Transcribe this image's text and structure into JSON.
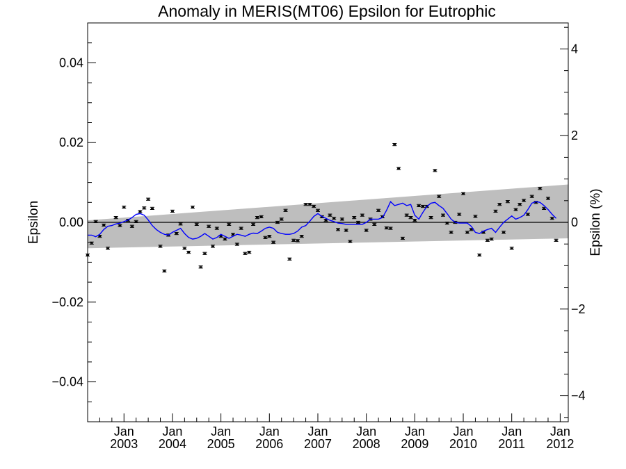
{
  "chart_data": {
    "type": "scatter",
    "title": "Anomaly in MERIS(MT06) Epsilon for Eutrophic",
    "ylabel": "Epsilon",
    "ylabel_right": "Epsilon (%)",
    "xlabel": "",
    "x_range": [
      "2002-04",
      "2012-03"
    ],
    "ylim": [
      -0.05,
      0.05
    ],
    "ylim_right": [
      -4.6,
      4.6
    ],
    "grid": false,
    "zero_line": true,
    "colors": {
      "points": "#000000",
      "running_mean": "#0000ff",
      "band": "#bebebe"
    },
    "y_ticks_left": [
      "0.04",
      "0.02",
      "0.00",
      "−0.02",
      "−0.04"
    ],
    "y_ticks_right": [
      "4",
      "2",
      "0",
      "−2",
      "−4"
    ],
    "x_ticks": [
      {
        "month": "Jan",
        "year": "2003"
      },
      {
        "month": "Jan",
        "year": "2004"
      },
      {
        "month": "Jan",
        "year": "2005"
      },
      {
        "month": "Jan",
        "year": "2006"
      },
      {
        "month": "Jan",
        "year": "2007"
      },
      {
        "month": "Jan",
        "year": "2008"
      },
      {
        "month": "Jan",
        "year": "2009"
      },
      {
        "month": "Jan",
        "year": "2010"
      },
      {
        "month": "Jan",
        "year": "2011"
      },
      {
        "month": "Jan",
        "year": "2012"
      }
    ],
    "band": {
      "upper_start": 0.0005,
      "upper_end": 0.0095,
      "lower_start": -0.0065,
      "lower_end": -0.004
    },
    "points": [
      [
        "2002-04",
        -0.0082
      ],
      [
        "2002-05",
        -0.0052
      ],
      [
        "2002-06",
        0.0002
      ],
      [
        "2002-07",
        -0.0035
      ],
      [
        "2002-08",
        -0.0007
      ],
      [
        "2002-09",
        -0.0065
      ],
      [
        "2002-11",
        0.0012
      ],
      [
        "2002-12",
        -0.0008
      ],
      [
        "2003-01",
        0.0038
      ],
      [
        "2003-02",
        0.0005
      ],
      [
        "2003-03",
        -0.001
      ],
      [
        "2003-04",
        0.0002
      ],
      [
        "2003-05",
        0.0027
      ],
      [
        "2003-06",
        0.0036
      ],
      [
        "2003-07",
        0.0058
      ],
      [
        "2003-08",
        0.0035
      ],
      [
        "2003-10",
        -0.006
      ],
      [
        "2003-11",
        -0.0122
      ],
      [
        "2003-12",
        -0.0032
      ],
      [
        "2004-01",
        0.0028
      ],
      [
        "2004-02",
        -0.0028
      ],
      [
        "2004-03",
        -0.0004
      ],
      [
        "2004-04",
        -0.0065
      ],
      [
        "2004-05",
        -0.0075
      ],
      [
        "2004-06",
        0.0038
      ],
      [
        "2004-07",
        -0.0005
      ],
      [
        "2004-08",
        -0.0112
      ],
      [
        "2004-09",
        -0.0078
      ],
      [
        "2004-10",
        -0.001
      ],
      [
        "2004-11",
        -0.006
      ],
      [
        "2004-12",
        -0.0015
      ],
      [
        "2005-01",
        -0.0035
      ],
      [
        "2005-02",
        -0.0042
      ],
      [
        "2005-03",
        -0.0005
      ],
      [
        "2005-04",
        -0.003
      ],
      [
        "2005-05",
        -0.0055
      ],
      [
        "2005-06",
        -0.0015
      ],
      [
        "2005-07",
        -0.0078
      ],
      [
        "2005-08",
        -0.0075
      ],
      [
        "2005-09",
        -0.0005
      ],
      [
        "2005-10",
        0.0012
      ],
      [
        "2005-11",
        0.0014
      ],
      [
        "2005-12",
        -0.0038
      ],
      [
        "2006-01",
        -0.0035
      ],
      [
        "2006-02",
        -0.005
      ],
      [
        "2006-03",
        0.0
      ],
      [
        "2006-04",
        0.0008
      ],
      [
        "2006-05",
        0.003
      ],
      [
        "2006-06",
        -0.0092
      ],
      [
        "2006-07",
        -0.0045
      ],
      [
        "2006-08",
        -0.0046
      ],
      [
        "2006-09",
        -0.0035
      ],
      [
        "2006-10",
        0.0045
      ],
      [
        "2006-11",
        0.0045
      ],
      [
        "2006-12",
        0.004
      ],
      [
        "2007-01",
        0.003
      ],
      [
        "2007-02",
        0.0014
      ],
      [
        "2007-03",
        0.0005
      ],
      [
        "2007-04",
        0.0018
      ],
      [
        "2007-05",
        0.001
      ],
      [
        "2007-06",
        -0.0018
      ],
      [
        "2007-07",
        0.0008
      ],
      [
        "2007-08",
        -0.002
      ],
      [
        "2007-09",
        -0.0048
      ],
      [
        "2007-10",
        0.0012
      ],
      [
        "2007-11",
        0.0
      ],
      [
        "2007-12",
        0.0018
      ],
      [
        "2008-01",
        -0.002
      ],
      [
        "2008-02",
        0.0008
      ],
      [
        "2008-03",
        -0.0005
      ],
      [
        "2008-04",
        0.003
      ],
      [
        "2008-05",
        0.0014
      ],
      [
        "2008-06",
        -0.0014
      ],
      [
        "2008-07",
        -0.0015
      ],
      [
        "2008-08",
        0.0195
      ],
      [
        "2008-09",
        0.0135
      ],
      [
        "2008-10",
        -0.004
      ],
      [
        "2008-11",
        0.0018
      ],
      [
        "2008-12",
        0.0012
      ],
      [
        "2009-01",
        0.0005
      ],
      [
        "2009-02",
        0.0042
      ],
      [
        "2009-03",
        0.004
      ],
      [
        "2009-04",
        0.004
      ],
      [
        "2009-05",
        0.0012
      ],
      [
        "2009-06",
        0.013
      ],
      [
        "2009-07",
        0.0065
      ],
      [
        "2009-08",
        0.0018
      ],
      [
        "2009-09",
        -0.0002
      ],
      [
        "2009-10",
        -0.0025
      ],
      [
        "2009-11",
        0.0
      ],
      [
        "2009-12",
        0.002
      ],
      [
        "2010-01",
        0.0072
      ],
      [
        "2010-02",
        -0.0025
      ],
      [
        "2010-03",
        -0.0018
      ],
      [
        "2010-04",
        0.0015
      ],
      [
        "2010-05",
        -0.0082
      ],
      [
        "2010-06",
        -0.0025
      ],
      [
        "2010-07",
        -0.0045
      ],
      [
        "2010-08",
        -0.0042
      ],
      [
        "2010-09",
        0.0028
      ],
      [
        "2010-10",
        0.0045
      ],
      [
        "2010-11",
        -0.0025
      ],
      [
        "2010-12",
        0.0052
      ],
      [
        "2011-01",
        -0.0065
      ],
      [
        "2011-02",
        0.0032
      ],
      [
        "2011-03",
        0.0045
      ],
      [
        "2011-04",
        0.0055
      ],
      [
        "2011-05",
        0.002
      ],
      [
        "2011-06",
        0.0065
      ],
      [
        "2011-07",
        0.005
      ],
      [
        "2011-08",
        0.0085
      ],
      [
        "2011-09",
        0.0035
      ],
      [
        "2011-10",
        0.006
      ],
      [
        "2011-11",
        0.001
      ],
      [
        "2011-12",
        -0.0045
      ]
    ],
    "running_mean": [
      [
        "2002-04",
        -0.0032
      ],
      [
        "2002-05",
        -0.0032
      ],
      [
        "2002-06",
        -0.0036
      ],
      [
        "2002-07",
        -0.003
      ],
      [
        "2002-08",
        -0.0018
      ],
      [
        "2002-09",
        -0.001
      ],
      [
        "2002-10",
        -0.0008
      ],
      [
        "2002-11",
        -0.0004
      ],
      [
        "2002-12",
        -0.0002
      ],
      [
        "2003-01",
        0.0002
      ],
      [
        "2003-02",
        0.0006
      ],
      [
        "2003-03",
        0.0012
      ],
      [
        "2003-04",
        0.002
      ],
      [
        "2003-05",
        0.0022
      ],
      [
        "2003-06",
        0.0018
      ],
      [
        "2003-07",
        0.0006
      ],
      [
        "2003-08",
        -0.0008
      ],
      [
        "2003-09",
        -0.0018
      ],
      [
        "2003-10",
        -0.0025
      ],
      [
        "2003-11",
        -0.003
      ],
      [
        "2003-12",
        -0.0032
      ],
      [
        "2004-01",
        -0.0025
      ],
      [
        "2004-02",
        -0.002
      ],
      [
        "2004-03",
        -0.0015
      ],
      [
        "2004-04",
        -0.0028
      ],
      [
        "2004-05",
        -0.0038
      ],
      [
        "2004-06",
        -0.0042
      ],
      [
        "2004-07",
        -0.004
      ],
      [
        "2004-08",
        -0.0035
      ],
      [
        "2004-09",
        -0.0028
      ],
      [
        "2004-10",
        -0.0035
      ],
      [
        "2004-11",
        -0.0042
      ],
      [
        "2004-12",
        -0.0038
      ],
      [
        "2005-01",
        -0.003
      ],
      [
        "2005-02",
        -0.0035
      ],
      [
        "2005-03",
        -0.004
      ],
      [
        "2005-04",
        -0.0035
      ],
      [
        "2005-05",
        -0.003
      ],
      [
        "2005-06",
        -0.0032
      ],
      [
        "2005-07",
        -0.0035
      ],
      [
        "2005-08",
        -0.003
      ],
      [
        "2005-09",
        -0.0027
      ],
      [
        "2005-10",
        -0.0028
      ],
      [
        "2005-11",
        -0.0022
      ],
      [
        "2005-12",
        -0.0015
      ],
      [
        "2006-01",
        -0.0012
      ],
      [
        "2006-02",
        -0.0015
      ],
      [
        "2006-03",
        -0.0025
      ],
      [
        "2006-04",
        -0.0028
      ],
      [
        "2006-05",
        -0.003
      ],
      [
        "2006-06",
        -0.003
      ],
      [
        "2006-07",
        -0.0028
      ],
      [
        "2006-08",
        -0.0022
      ],
      [
        "2006-09",
        -0.0012
      ],
      [
        "2006-10",
        -0.0008
      ],
      [
        "2006-11",
        0.0003
      ],
      [
        "2006-12",
        0.0015
      ],
      [
        "2007-01",
        0.0022
      ],
      [
        "2007-02",
        0.0015
      ],
      [
        "2007-03",
        0.001
      ],
      [
        "2007-04",
        0.0005
      ],
      [
        "2007-05",
        0.0002
      ],
      [
        "2007-06",
        -0.0002
      ],
      [
        "2007-07",
        -0.0003
      ],
      [
        "2007-08",
        -0.0005
      ],
      [
        "2007-09",
        -0.0005
      ],
      [
        "2007-10",
        -0.0005
      ],
      [
        "2007-11",
        -0.0005
      ],
      [
        "2007-12",
        -0.0005
      ],
      [
        "2008-01",
        0.0
      ],
      [
        "2008-02",
        0.0008
      ],
      [
        "2008-03",
        0.0008
      ],
      [
        "2008-04",
        0.0008
      ],
      [
        "2008-05",
        0.0012
      ],
      [
        "2008-06",
        0.003
      ],
      [
        "2008-07",
        0.0052
      ],
      [
        "2008-08",
        0.0042
      ],
      [
        "2008-09",
        0.0045
      ],
      [
        "2008-10",
        0.0048
      ],
      [
        "2008-11",
        0.0042
      ],
      [
        "2008-12",
        0.0045
      ],
      [
        "2009-01",
        0.0018
      ],
      [
        "2009-02",
        0.0008
      ],
      [
        "2009-03",
        0.0025
      ],
      [
        "2009-04",
        0.004
      ],
      [
        "2009-05",
        0.0048
      ],
      [
        "2009-06",
        0.005
      ],
      [
        "2009-07",
        0.0042
      ],
      [
        "2009-08",
        0.0035
      ],
      [
        "2009-09",
        0.0022
      ],
      [
        "2009-10",
        0.0008
      ],
      [
        "2009-11",
        0.0
      ],
      [
        "2009-12",
        -0.0002
      ],
      [
        "2010-01",
        -0.0002
      ],
      [
        "2010-02",
        -0.0002
      ],
      [
        "2010-03",
        -0.001
      ],
      [
        "2010-04",
        -0.0025
      ],
      [
        "2010-05",
        -0.0028
      ],
      [
        "2010-06",
        -0.0022
      ],
      [
        "2010-07",
        -0.0018
      ],
      [
        "2010-08",
        -0.0015
      ],
      [
        "2010-09",
        -0.0025
      ],
      [
        "2010-10",
        -0.0012
      ],
      [
        "2010-11",
        0.0
      ],
      [
        "2010-12",
        0.0008
      ],
      [
        "2011-01",
        0.0016
      ],
      [
        "2011-02",
        0.0008
      ],
      [
        "2011-03",
        0.0012
      ],
      [
        "2011-04",
        0.0018
      ],
      [
        "2011-05",
        0.0032
      ],
      [
        "2011-06",
        0.0048
      ],
      [
        "2011-07",
        0.0052
      ],
      [
        "2011-08",
        0.005
      ],
      [
        "2011-09",
        0.0042
      ],
      [
        "2011-10",
        0.0032
      ],
      [
        "2011-11",
        0.002
      ],
      [
        "2011-12",
        0.001
      ]
    ]
  }
}
